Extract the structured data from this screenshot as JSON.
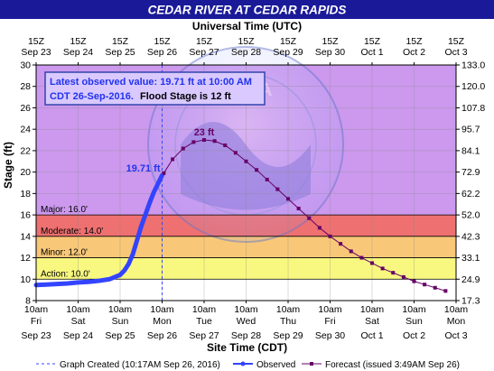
{
  "chart_data": {
    "type": "line",
    "title": "CEDAR RIVER AT CEDAR RAPIDS",
    "top_axis_label": "Universal Time (UTC)",
    "xlabel": "Site Time (CDT)",
    "ylabel": "Stage (ft)",
    "ylim": [
      8,
      30
    ],
    "y_ticks": [
      8,
      10,
      12,
      14,
      16,
      18,
      20,
      22,
      24,
      26,
      28,
      30
    ],
    "right_axis": {
      "labels": [
        "17.3",
        "24.9",
        "33.1",
        "42.3",
        "52.0",
        "62.2",
        "72.9",
        "84.1",
        "95.7",
        "107.8",
        "120.0",
        "133.0"
      ]
    },
    "x_range_days": [
      0,
      10
    ],
    "top_ticks": [
      [
        "15Z",
        "Sep 23"
      ],
      [
        "15Z",
        "Sep 24"
      ],
      [
        "15Z",
        "Sep 25"
      ],
      [
        "15Z",
        "Sep 26"
      ],
      [
        "15Z",
        "Sep 27"
      ],
      [
        "15Z",
        "Sep 28"
      ],
      [
        "15Z",
        "Sep 29"
      ],
      [
        "15Z",
        "Sep 30"
      ],
      [
        "15Z",
        "Oct 1"
      ],
      [
        "15Z",
        "Oct 2"
      ],
      [
        "15Z",
        "Oct 3"
      ]
    ],
    "bottom_ticks": [
      [
        "10am",
        "Fri",
        "Sep 23"
      ],
      [
        "10am",
        "Sat",
        "Sep 24"
      ],
      [
        "10am",
        "Sun",
        "Sep 25"
      ],
      [
        "10am",
        "Mon",
        "Sep 26"
      ],
      [
        "10am",
        "Tue",
        "Sep 27"
      ],
      [
        "10am",
        "Wed",
        "Sep 28"
      ],
      [
        "10am",
        "Thu",
        "Sep 29"
      ],
      [
        "10am",
        "Fri",
        "Sep 30"
      ],
      [
        "10am",
        "Sat",
        "Oct 1"
      ],
      [
        "10am",
        "Sun",
        "Oct 2"
      ],
      [
        "10am",
        "Mon",
        "Oct 3"
      ]
    ],
    "flood_categories": [
      {
        "label": "Major: 16.0'",
        "from": 16,
        "to": 30,
        "color": "#cc99ee"
      },
      {
        "label": "Moderate: 14.0'",
        "from": 14,
        "to": 16,
        "color": "#ee7070"
      },
      {
        "label": "Minor: 12.0'",
        "from": 12,
        "to": 14,
        "color": "#f8c878"
      },
      {
        "label": "Action: 10.0'",
        "from": 10,
        "to": 12,
        "color": "#f8f880"
      }
    ],
    "info_box": {
      "line1": "Latest observed value: 19.71 ft at 10:00 AM",
      "line2": "CDT 26-Sep-2016.",
      "line2b": "Flood Stage is 12 ft"
    },
    "annotations": {
      "observed_peak": "19.71 ft",
      "forecast_peak": "23 ft"
    },
    "graph_created_day": 3.0,
    "series": [
      {
        "name": "Observed",
        "color": "#3344ff",
        "x": [
          0,
          0.25,
          0.5,
          0.75,
          1.0,
          1.25,
          1.5,
          1.75,
          2.0,
          2.1,
          2.2,
          2.3,
          2.4,
          2.5,
          2.6,
          2.7,
          2.8,
          2.9,
          3.0
        ],
        "y": [
          9.45,
          9.5,
          9.55,
          9.6,
          9.7,
          9.75,
          9.85,
          10.0,
          10.4,
          10.8,
          11.4,
          12.3,
          13.6,
          14.9,
          16.0,
          17.1,
          18.1,
          18.9,
          19.71
        ]
      },
      {
        "name": "Forecast (issued 3:49AM Sep 26)",
        "color": "#660066",
        "x": [
          3.04,
          3.25,
          3.5,
          3.75,
          4.0,
          4.25,
          4.5,
          4.75,
          5.0,
          5.25,
          5.5,
          5.75,
          6.0,
          6.25,
          6.5,
          6.75,
          7.0,
          7.25,
          7.5,
          7.75,
          8.0,
          8.25,
          8.5,
          8.75,
          9.0,
          9.25,
          9.5,
          9.75
        ],
        "y": [
          19.9,
          21.2,
          22.2,
          22.8,
          23.0,
          22.9,
          22.5,
          21.8,
          21.0,
          20.2,
          19.3,
          18.4,
          17.5,
          16.6,
          15.7,
          14.8,
          14.0,
          13.3,
          12.6,
          12.0,
          11.5,
          11.0,
          10.6,
          10.2,
          9.8,
          9.5,
          9.2,
          8.9
        ]
      }
    ],
    "legend": {
      "graph_created": "Graph Created (10:17AM Sep 26, 2016)",
      "observed": "Observed",
      "forecast": "Forecast (issued 3:49AM Sep 26)"
    },
    "logo_text": "NATIONAL OCEANIC AND ATMOSPHERIC ADMINISTRATION · U.S. DEPARTMENT OF COMMERCE · NOAA",
    "colors": {
      "title_bar": "#1a1a99",
      "title_text": "#ffffff",
      "plot_border": "#000000",
      "info_text_blue": "#2233ee",
      "info_box_border": "#3344aa"
    }
  }
}
